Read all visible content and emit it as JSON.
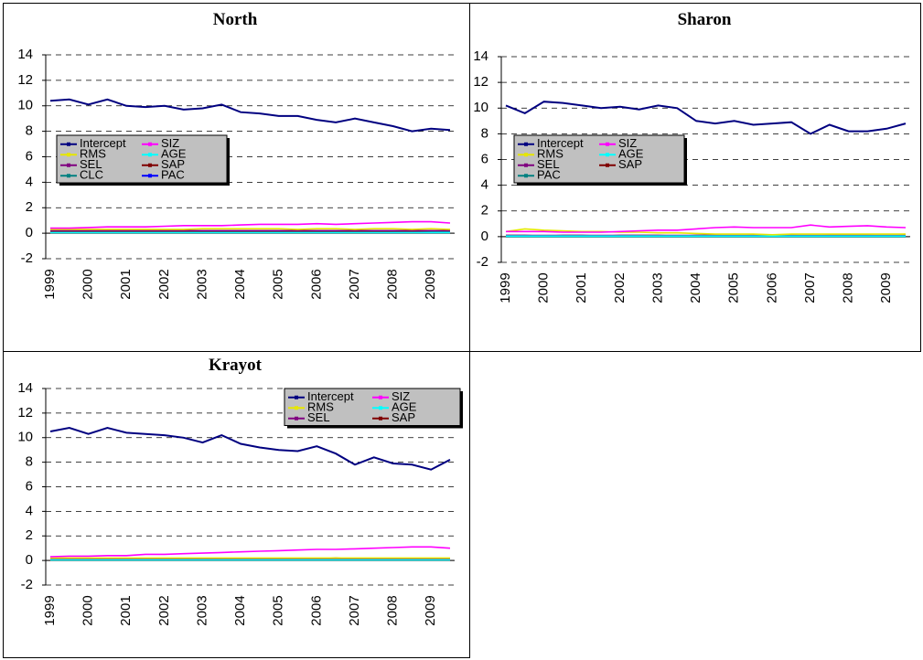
{
  "chart_data": [
    {
      "type": "line",
      "title": "North",
      "categories": [
        "1999",
        null,
        "2000",
        null,
        "2001",
        null,
        "2002",
        null,
        "2003",
        null,
        "2004",
        null,
        "2005",
        null,
        "2006",
        null,
        "2007",
        null,
        "2008",
        null,
        "2009",
        null
      ],
      "ylim": [
        -2,
        14
      ],
      "yticks": [
        -2,
        0,
        2,
        4,
        6,
        8,
        10,
        12,
        14
      ],
      "grid": true,
      "series": [
        {
          "name": "Intercept",
          "color": "#000080",
          "values": [
            10.4,
            10.5,
            10.1,
            10.5,
            10.0,
            9.9,
            10.0,
            9.7,
            9.8,
            10.1,
            9.5,
            9.4,
            9.2,
            9.2,
            8.9,
            8.7,
            9.0,
            8.7,
            8.4,
            8.0,
            8.2,
            8.1
          ]
        },
        {
          "name": "SIZ",
          "color": "#ff00ff",
          "values": [
            0.4,
            0.4,
            0.45,
            0.5,
            0.5,
            0.5,
            0.55,
            0.6,
            0.6,
            0.6,
            0.65,
            0.7,
            0.7,
            0.7,
            0.75,
            0.7,
            0.75,
            0.8,
            0.85,
            0.9,
            0.9,
            0.8
          ]
        },
        {
          "name": "RMS",
          "color": "#e6e600",
          "values": [
            0.3,
            0.3,
            0.3,
            0.3,
            0.3,
            0.3,
            0.3,
            0.3,
            0.35,
            0.35,
            0.35,
            0.35,
            0.35,
            0.3,
            0.35,
            0.35,
            0.3,
            0.35,
            0.35,
            0.3,
            0.35,
            0.3
          ]
        },
        {
          "name": "AGE",
          "color": "#00ffff",
          "values": [
            0.05,
            0.05,
            0.05,
            0.05,
            0.05,
            0.05,
            0.05,
            0.05,
            0.05,
            0.05,
            0.05,
            0.05,
            0.05,
            0.05,
            0.05,
            0.05,
            0.05,
            0.05,
            0.05,
            0.05,
            0.05,
            0.05
          ]
        },
        {
          "name": "SEL",
          "color": "#800080",
          "values": [
            0.2,
            0.2,
            0.2,
            0.2,
            0.2,
            0.2,
            0.2,
            0.2,
            0.2,
            0.2,
            0.2,
            0.2,
            0.2,
            0.2,
            0.2,
            0.2,
            0.2,
            0.2,
            0.2,
            0.2,
            0.2,
            0.2
          ]
        },
        {
          "name": "SAP",
          "color": "#800000",
          "values": [
            0.1,
            0.1,
            0.1,
            0.1,
            0.1,
            0.1,
            0.1,
            0.1,
            0.1,
            0.15,
            0.1,
            0.1,
            0.15,
            0.1,
            0.1,
            0.15,
            0.1,
            0.1,
            0.15,
            0.15,
            0.2,
            0.2
          ]
        },
        {
          "name": "CLC",
          "color": "#008080",
          "values": [
            0.15,
            0.15,
            0.15,
            0.15,
            0.15,
            0.15,
            0.15,
            0.15,
            0.15,
            0.15,
            0.15,
            0.15,
            0.15,
            0.15,
            0.15,
            0.15,
            0.15,
            0.15,
            0.15,
            0.15,
            0.15,
            0.15
          ]
        },
        {
          "name": "PAC",
          "color": "#0000ff",
          "values": [
            0.1,
            0.1,
            0.1,
            0.1,
            0.1,
            0.1,
            0.1,
            0.1,
            0.1,
            0.1,
            0.1,
            0.1,
            0.1,
            0.1,
            0.1,
            0.1,
            0.1,
            0.1,
            0.1,
            0.1,
            0.1,
            0.1
          ]
        }
      ]
    },
    {
      "type": "line",
      "title": "Sharon",
      "categories": [
        "1999",
        null,
        "2000",
        null,
        "2001",
        null,
        "2002",
        null,
        "2003",
        null,
        "2004",
        null,
        "2005",
        null,
        "2006",
        null,
        "2007",
        null,
        "2008",
        null,
        "2009",
        null
      ],
      "ylim": [
        -2,
        14
      ],
      "yticks": [
        -2,
        0,
        2,
        4,
        6,
        8,
        10,
        12,
        14
      ],
      "grid": true,
      "series": [
        {
          "name": "Intercept",
          "color": "#000080",
          "values": [
            10.2,
            9.6,
            10.5,
            10.4,
            10.2,
            10.0,
            10.1,
            9.9,
            10.2,
            10.0,
            9.0,
            8.8,
            9.0,
            8.7,
            8.8,
            8.9,
            8.0,
            8.7,
            8.2,
            8.2,
            8.4,
            8.8
          ]
        },
        {
          "name": "SIZ",
          "color": "#ff00ff",
          "values": [
            0.4,
            0.4,
            0.4,
            0.35,
            0.35,
            0.35,
            0.4,
            0.45,
            0.5,
            0.5,
            0.6,
            0.7,
            0.75,
            0.7,
            0.7,
            0.7,
            0.9,
            0.75,
            0.8,
            0.85,
            0.75,
            0.7
          ]
        },
        {
          "name": "RMS",
          "color": "#e6e600",
          "values": [
            0.4,
            0.6,
            0.5,
            0.45,
            0.4,
            0.4,
            0.35,
            0.35,
            0.3,
            0.3,
            0.25,
            0.2,
            0.2,
            0.2,
            0.15,
            0.2,
            0.2,
            0.2,
            0.2,
            0.2,
            0.2,
            0.2
          ]
        },
        {
          "name": "AGE",
          "color": "#00ffff",
          "values": [
            0.05,
            0.05,
            0.05,
            0.05,
            0.05,
            0.05,
            0.05,
            0.05,
            0.05,
            0.05,
            0.05,
            0.05,
            0.05,
            0.05,
            0.05,
            0.05,
            0.05,
            0.05,
            0.05,
            0.05,
            0.05,
            0.05
          ]
        },
        {
          "name": "SEL",
          "color": "#800080",
          "values": [
            0.1,
            0.1,
            0.1,
            0.1,
            0.1,
            0.1,
            0.1,
            0.1,
            0.1,
            0.1,
            0.1,
            0.1,
            0.1,
            0.1,
            0.1,
            0.1,
            0.1,
            0.1,
            0.1,
            0.1,
            0.1,
            0.1
          ]
        },
        {
          "name": "SAP",
          "color": "#800000",
          "values": [
            0.1,
            0.1,
            0.05,
            0.1,
            0.1,
            0.05,
            0.1,
            0.1,
            0.1,
            0.05,
            0.1,
            0.1,
            0.05,
            0.1,
            0.1,
            0.1,
            0.05,
            0.1,
            0.1,
            0.1,
            0.05,
            0.1
          ]
        },
        {
          "name": "PAC",
          "color": "#008080",
          "values": [
            0.0,
            0.0,
            0.0,
            0.0,
            0.0,
            0.0,
            0.0,
            0.0,
            0.0,
            0.0,
            0.0,
            0.0,
            0.0,
            0.0,
            0.0,
            0.0,
            0.0,
            0.0,
            0.0,
            0.0,
            0.0,
            0.0
          ]
        }
      ]
    },
    {
      "type": "line",
      "title": "Krayot",
      "categories": [
        "1999",
        null,
        "2000",
        null,
        "2001",
        null,
        "2002",
        null,
        "2003",
        null,
        "2004",
        null,
        "2005",
        null,
        "2006",
        null,
        "2007",
        null,
        "2008",
        null,
        "2009",
        null
      ],
      "ylim": [
        -2,
        14
      ],
      "yticks": [
        -2,
        0,
        2,
        4,
        6,
        8,
        10,
        12,
        14
      ],
      "grid": true,
      "series": [
        {
          "name": "Intercept",
          "color": "#000080",
          "values": [
            10.5,
            10.8,
            10.3,
            10.8,
            10.4,
            10.3,
            10.2,
            10.0,
            9.6,
            10.2,
            9.5,
            9.2,
            9.0,
            8.9,
            9.3,
            8.7,
            7.8,
            8.4,
            7.9,
            7.8,
            7.4,
            8.2
          ]
        },
        {
          "name": "SIZ",
          "color": "#ff00ff",
          "values": [
            0.3,
            0.35,
            0.35,
            0.4,
            0.4,
            0.5,
            0.5,
            0.55,
            0.6,
            0.65,
            0.7,
            0.75,
            0.8,
            0.85,
            0.9,
            0.9,
            0.95,
            1.0,
            1.05,
            1.1,
            1.1,
            1.0
          ]
        },
        {
          "name": "RMS",
          "color": "#e6e600",
          "values": [
            0.2,
            0.2,
            0.2,
            0.2,
            0.2,
            0.2,
            0.2,
            0.2,
            0.2,
            0.2,
            0.2,
            0.2,
            0.2,
            0.2,
            0.2,
            0.2,
            0.2,
            0.2,
            0.2,
            0.2,
            0.2,
            0.2
          ]
        },
        {
          "name": "AGE",
          "color": "#00ffff",
          "values": [
            0.05,
            0.05,
            0.05,
            0.05,
            0.05,
            0.05,
            0.05,
            0.05,
            0.05,
            0.05,
            0.05,
            0.05,
            0.05,
            0.05,
            0.05,
            0.05,
            0.05,
            0.05,
            0.05,
            0.05,
            0.05,
            0.05
          ]
        },
        {
          "name": "SEL",
          "color": "#800080",
          "values": [
            0.1,
            0.1,
            0.1,
            0.1,
            0.1,
            0.1,
            0.1,
            0.1,
            0.1,
            0.1,
            0.1,
            0.1,
            0.1,
            0.1,
            0.1,
            0.1,
            0.1,
            0.1,
            0.1,
            0.1,
            0.1,
            0.1
          ]
        },
        {
          "name": "SAP",
          "color": "#800000",
          "values": [
            0.1,
            0.15,
            0.1,
            0.1,
            0.15,
            0.1,
            0.1,
            0.15,
            0.1,
            0.1,
            0.15,
            0.1,
            0.1,
            0.15,
            0.1,
            0.2,
            0.1,
            0.1,
            0.15,
            0.1,
            0.1,
            0.15
          ]
        }
      ]
    }
  ]
}
